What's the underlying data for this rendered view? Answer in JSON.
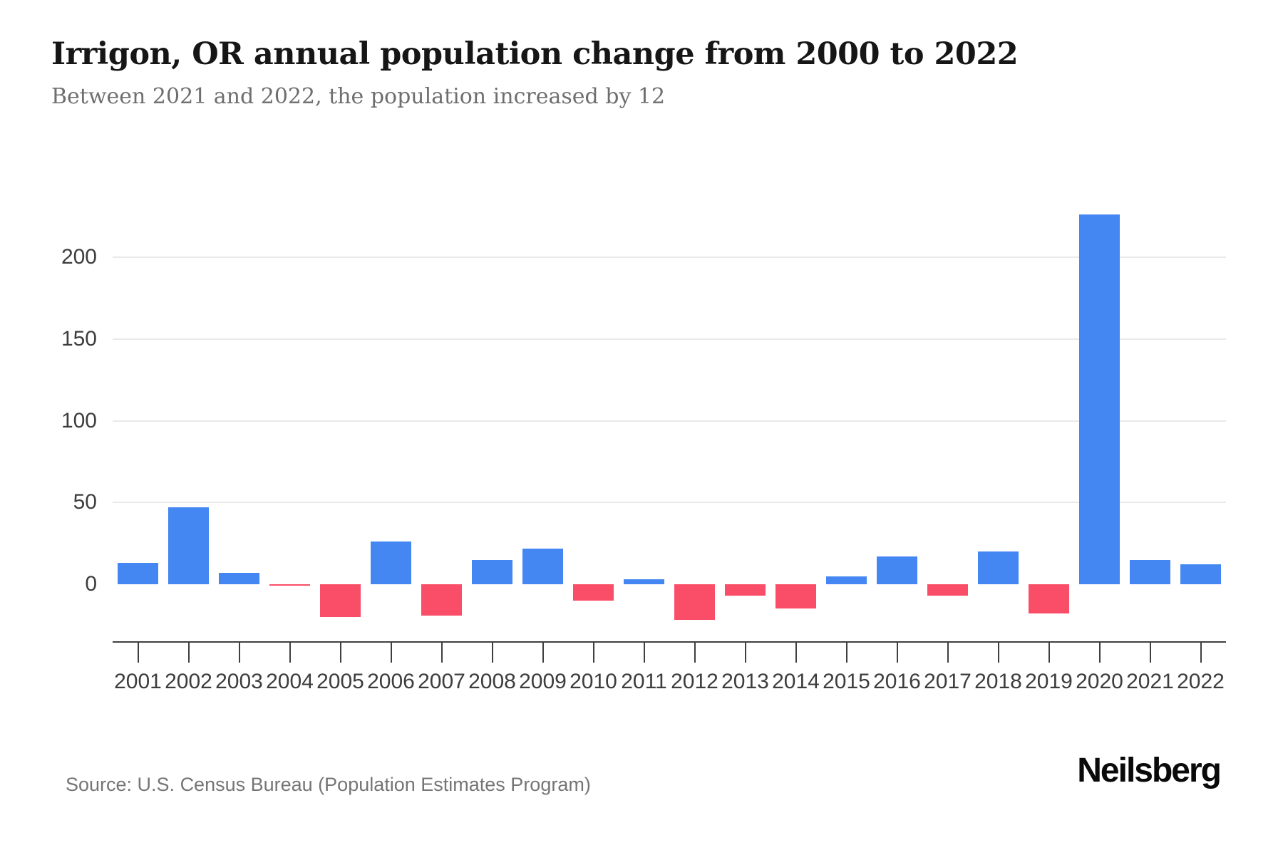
{
  "header": {
    "title": "Irrigon, OR annual population change from 2000 to 2022",
    "subtitle": "Between 2021 and 2022, the population increased by 12"
  },
  "chart_data": {
    "type": "bar",
    "title": "Irrigon, OR annual population change from 2000 to 2022",
    "categories": [
      "2001",
      "2002",
      "2003",
      "2004",
      "2005",
      "2006",
      "2007",
      "2008",
      "2009",
      "2010",
      "2011",
      "2012",
      "2013",
      "2014",
      "2015",
      "2016",
      "2017",
      "2018",
      "2019",
      "2020",
      "2021",
      "2022"
    ],
    "values": [
      13,
      47,
      7,
      -1,
      -20,
      26,
      -19,
      15,
      22,
      -10,
      3,
      -22,
      -7,
      -15,
      5,
      17,
      -7,
      20,
      -18,
      226,
      15,
      12
    ],
    "xlabel": "",
    "ylabel": "",
    "yticks": [
      0,
      50,
      100,
      150,
      200
    ],
    "ylim": [
      -30,
      250
    ],
    "grid": "horizontal",
    "legend": "none",
    "colors": {
      "positive": "#4486f2",
      "negative": "#fa4d67",
      "gridline": "#e9e9e9",
      "axis": "#3f3f3f",
      "tick_label": "#3d3d3d"
    }
  },
  "footer": {
    "source": "Source: U.S. Census Bureau (Population Estimates Program)",
    "brand": "Neilsberg"
  }
}
